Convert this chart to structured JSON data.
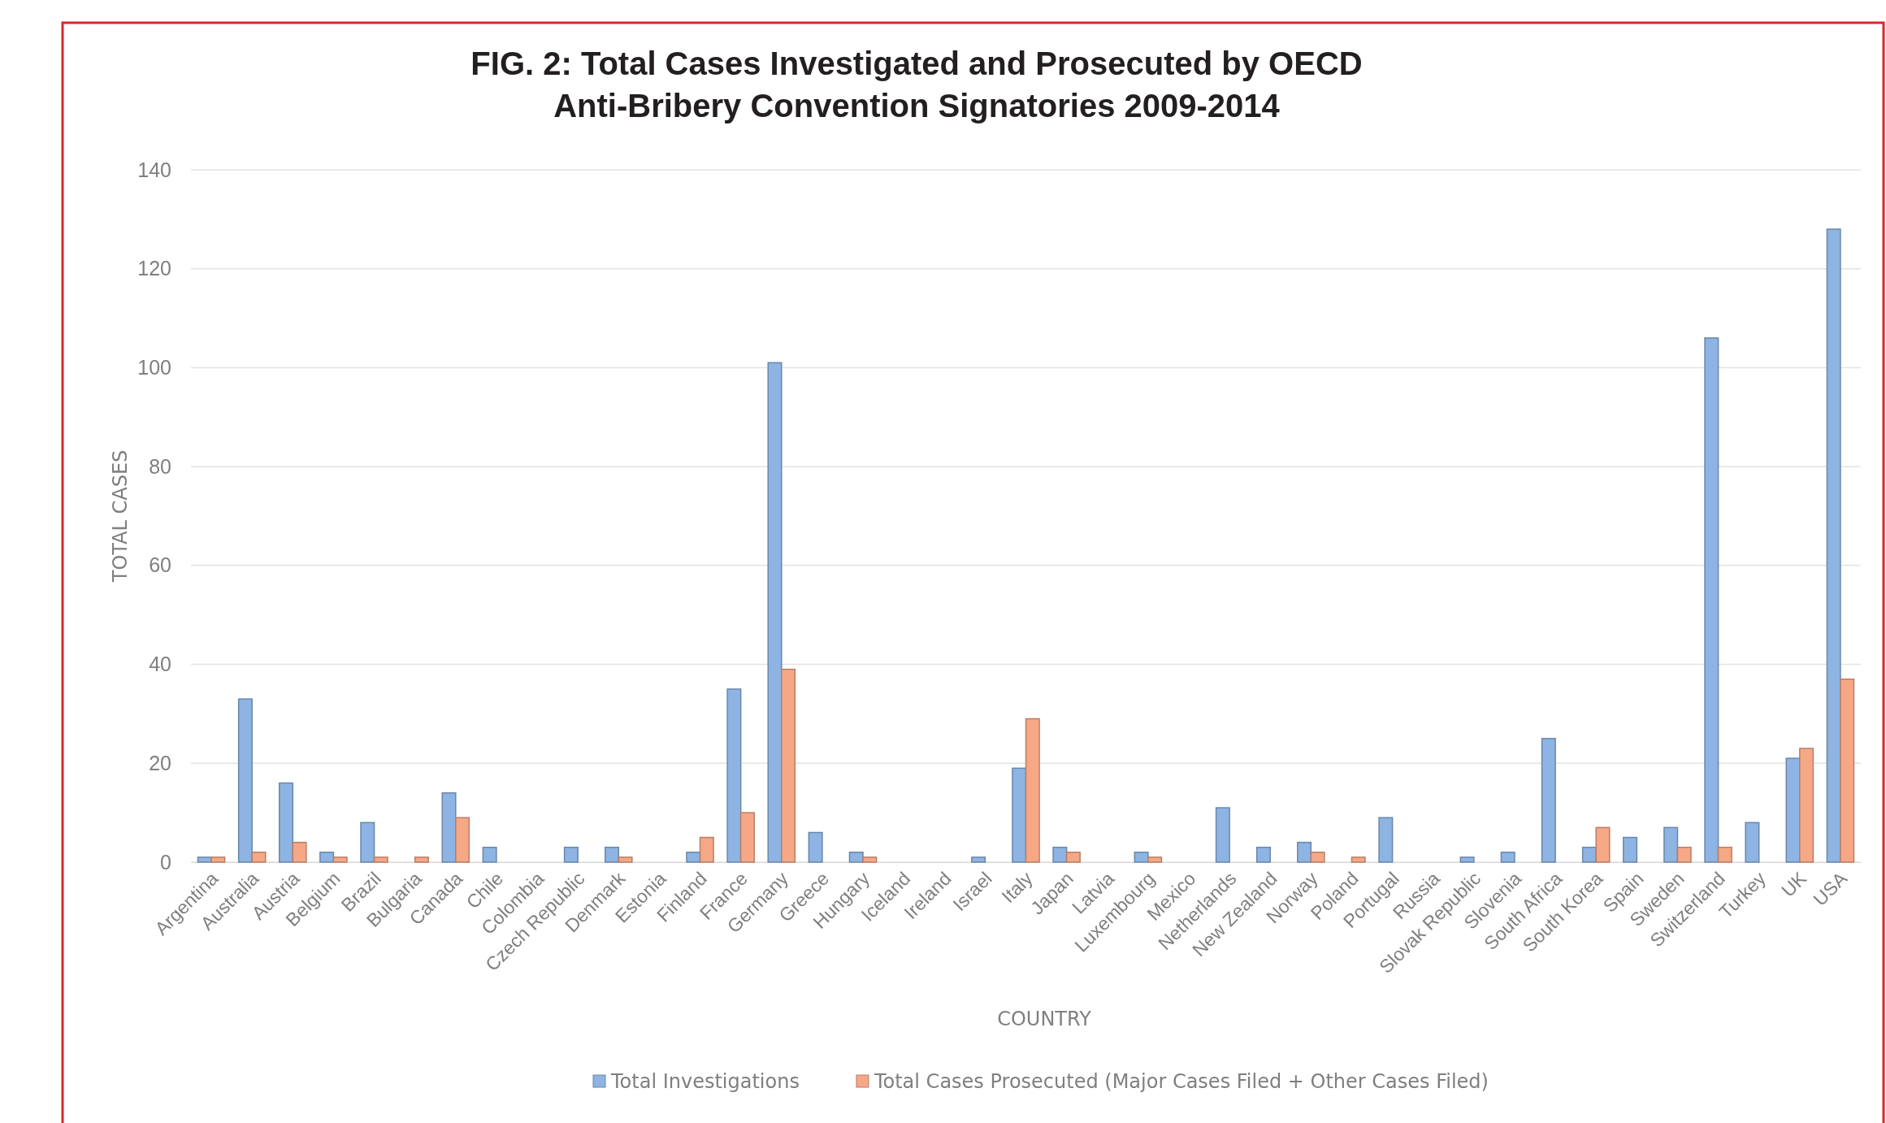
{
  "chart_data": {
    "type": "bar",
    "title": "FIG. 2: Total Cases Investigated and Prosecuted by OECD Anti-Bribery Convention Signatories 2009-2014",
    "xlabel": "COUNTRY",
    "ylabel": "TOTAL CASES",
    "categories": [
      "Argentina",
      "Australia",
      "Austria",
      "Belgium",
      "Brazil",
      "Bulgaria",
      "Canada",
      "Chile",
      "Colombia",
      "Czech Republic",
      "Denmark",
      "Estonia",
      "Finland",
      "France",
      "Germany",
      "Greece",
      "Hungary",
      "Iceland",
      "Ireland",
      "Israel",
      "Italy",
      "Japan",
      "Latvia",
      "Luxembourg",
      "Mexico",
      "Netherlands",
      "New Zealand",
      "Norway",
      "Poland",
      "Portugal",
      "Russia",
      "Slovak Republic",
      "Slovenia",
      "South Africa",
      "South Korea",
      "Spain",
      "Sweden",
      "Switzerland",
      "Turkey",
      "UK",
      "USA"
    ],
    "series": [
      {
        "name": "Total Investigations",
        "color": "#8db4e2",
        "values": [
          1,
          33,
          16,
          2,
          8,
          0,
          14,
          3,
          0,
          3,
          3,
          0,
          2,
          35,
          101,
          6,
          2,
          0,
          0,
          1,
          19,
          3,
          0,
          2,
          0,
          11,
          3,
          4,
          0,
          9,
          0,
          1,
          2,
          25,
          3,
          5,
          7,
          106,
          8,
          21,
          128
        ]
      },
      {
        "name": "Total Cases Prosecuted (Major Cases Filed + Other Cases Filed)",
        "color": "#f6a886",
        "values": [
          1,
          2,
          4,
          1,
          1,
          1,
          9,
          0,
          0,
          0,
          1,
          0,
          5,
          10,
          39,
          0,
          1,
          0,
          0,
          0,
          29,
          2,
          0,
          1,
          0,
          0,
          0,
          2,
          1,
          0,
          0,
          0,
          0,
          0,
          7,
          0,
          3,
          3,
          0,
          23,
          37
        ]
      }
    ],
    "ylim": [
      0,
      140
    ],
    "yticks": [
      0,
      20,
      40,
      60,
      80,
      100,
      120,
      140
    ],
    "grid": "y",
    "legend": "bottom"
  }
}
